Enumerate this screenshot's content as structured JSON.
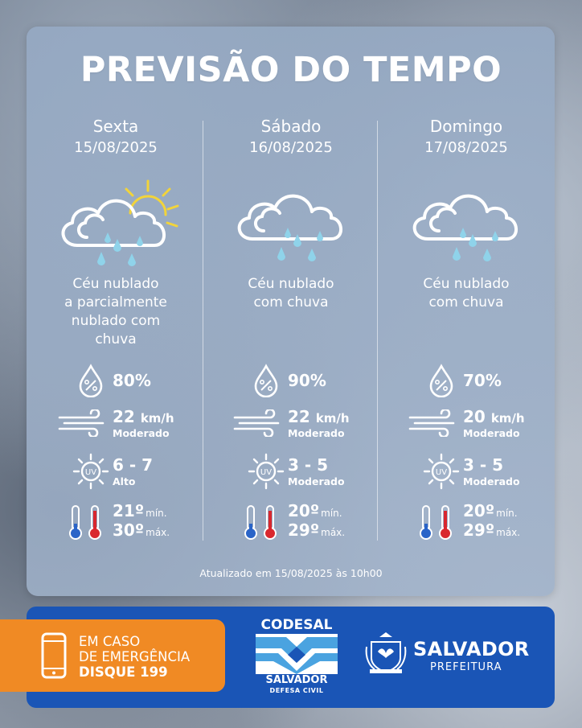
{
  "title": "PREVISÃO DO TEMPO",
  "days": [
    {
      "name": "Sexta",
      "date": "15/08/2025",
      "icon": "cloud-sun-rain-icon",
      "desc_lines": [
        "Céu nublado",
        "a parcialmente",
        "nublado com",
        "chuva"
      ],
      "humidity": "80%",
      "wind_value": "22",
      "wind_unit": "km/h",
      "wind_label": "Moderado",
      "uv_value": "6 - 7",
      "uv_label": "Alto",
      "temp_min": "21º",
      "temp_min_label": "mín.",
      "temp_max": "30º",
      "temp_max_label": "máx."
    },
    {
      "name": "Sábado",
      "date": "16/08/2025",
      "icon": "cloud-rain-icon",
      "desc_lines": [
        "Céu nublado",
        "com chuva"
      ],
      "humidity": "90%",
      "wind_value": "22",
      "wind_unit": "km/h",
      "wind_label": "Moderado",
      "uv_value": "3 - 5",
      "uv_label": "Moderado",
      "temp_min": "20º",
      "temp_min_label": "mín.",
      "temp_max": "29º",
      "temp_max_label": "máx."
    },
    {
      "name": "Domingo",
      "date": "17/08/2025",
      "icon": "cloud-rain-icon",
      "desc_lines": [
        "Céu nublado",
        "com chuva"
      ],
      "humidity": "70%",
      "wind_value": "20",
      "wind_unit": "km/h",
      "wind_label": "Moderado",
      "uv_value": "3 - 5",
      "uv_label": "Moderado",
      "temp_min": "20º",
      "temp_min_label": "mín.",
      "temp_max": "29º",
      "temp_max_label": "máx."
    }
  ],
  "updated": "Atualizado em 15/08/2025 às 10h00",
  "emergency": {
    "line1": "EM CASO",
    "line2": "DE EMERGÊNCIA",
    "line3": "DISQUE 199"
  },
  "codesal": {
    "title": "CODESAL",
    "sub1": "SALVADOR",
    "sub2": "DEFESA CIVIL"
  },
  "salvador": {
    "title": "SALVADOR",
    "sub": "PREFEITURA"
  },
  "icons": [
    "humidity-drop-icon",
    "wind-icon",
    "uv-sun-icon",
    "thermometer-icon",
    "phone-icon"
  ],
  "colors": {
    "panel": "#9aafc8",
    "bar": "#1a55b6",
    "emergency": "#f08a24",
    "rain": "#8fd3ea",
    "sun": "#f2d43a",
    "thermo_cold": "#2a64c8",
    "thermo_hot": "#d9272e"
  }
}
